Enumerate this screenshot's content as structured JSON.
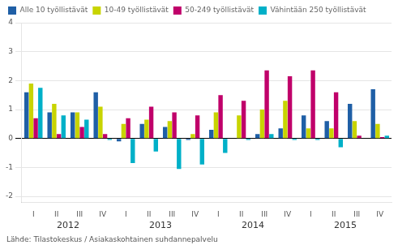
{
  "chart_data": {
    "type": "bar",
    "categories": [
      "I",
      "II",
      "III",
      "IV",
      "I",
      "II",
      "III",
      "IV",
      "I",
      "II",
      "III",
      "IV",
      "I",
      "II",
      "III",
      "IV"
    ],
    "series": [
      {
        "name": "Alle 10 työllistävät",
        "color": "#1f5fa6",
        "values": [
          1.6,
          0.9,
          0.9,
          1.6,
          -0.1,
          0.5,
          0.4,
          -0.05,
          0.3,
          0.0,
          0.15,
          0.35,
          0.8,
          0.6,
          1.2,
          1.7
        ]
      },
      {
        "name": "10-49 työllistävät",
        "color": "#c8d400",
        "values": [
          1.9,
          1.2,
          0.9,
          1.1,
          0.5,
          0.65,
          0.6,
          0.15,
          0.9,
          0.8,
          1.0,
          1.3,
          0.35,
          0.35,
          0.6,
          0.5
        ]
      },
      {
        "name": "50-249 työllistävät",
        "color": "#c0006a",
        "values": [
          0.7,
          0.15,
          0.4,
          0.15,
          0.7,
          1.1,
          0.9,
          0.8,
          1.5,
          1.3,
          2.35,
          2.15,
          2.35,
          1.6,
          0.1,
          0.05
        ]
      },
      {
        "name": "Vähintään 250 työllistävät",
        "color": "#00b0c8",
        "values": [
          1.75,
          0.8,
          0.65,
          -0.05,
          -0.85,
          -0.45,
          -1.05,
          -0.9,
          -0.5,
          -0.05,
          0.15,
          -0.05,
          -0.05,
          -0.3,
          0.0,
          0.1
        ]
      }
    ],
    "annotations": [
      "2012",
      "2013",
      "2014",
      "2015"
    ],
    "subtitle": "Lähde: Tilastokeskus / Asiakaskohtainen suhdannepalvelu",
    "ylim": [
      -2.2,
      4.0
    ],
    "yticks": [
      -2,
      -1,
      0,
      1,
      2,
      3,
      4
    ],
    "grid": true,
    "legend": "upper left"
  }
}
